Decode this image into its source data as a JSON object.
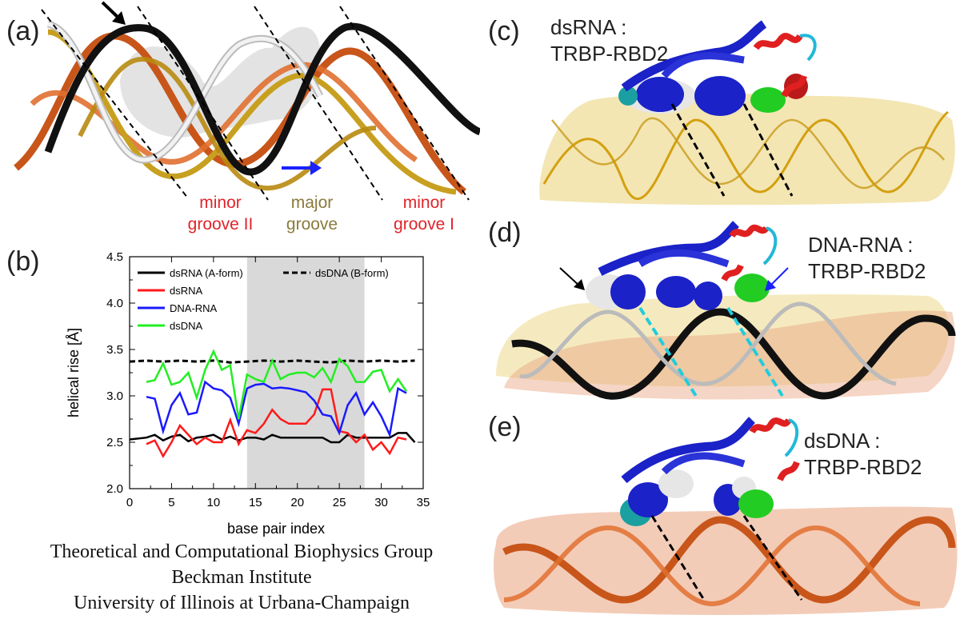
{
  "panel_a": {
    "label": "(a)",
    "groove_labels": [
      {
        "text": "minor groove II",
        "color": "#e0242a"
      },
      {
        "text": "major groove",
        "color": "#8a7a3a"
      },
      {
        "text": "minor groove I",
        "color": "#e0242a"
      }
    ]
  },
  "panel_b": {
    "label": "(b)"
  },
  "panel_c": {
    "label": "(c)",
    "complex": [
      "dsRNA :",
      "TRBP-RBD2"
    ]
  },
  "panel_d": {
    "label": "(d)",
    "complex": [
      "DNA-RNA :",
      "TRBP-RBD2"
    ]
  },
  "panel_e": {
    "label": "(e)",
    "complex": [
      "dsDNA :",
      "TRBP-RBD2"
    ]
  },
  "footer": {
    "line1": "Theoretical and Computational Biophysics Group",
    "line2": "Beckman Institute",
    "line3": "University of Illinois at Urbana-Champaign"
  },
  "colors": {
    "dsRNA_Aform": "#000000",
    "dsRNA": "#ff1a1a",
    "DNA_RNA": "#1a1aff",
    "dsDNA": "#22ee22",
    "shade": "#d9d9d9",
    "rna_surface": "#ecd98a",
    "dna_surface": "#e9a27e",
    "protein_blue": "#1a22c8",
    "helix_red": "#e02020",
    "green_residue": "#22cc22"
  },
  "chart_data": {
    "type": "line",
    "xlabel": "base pair index",
    "ylabel": "helical rise [Å]",
    "xlim": [
      0,
      35
    ],
    "ylim": [
      2.0,
      4.5
    ],
    "xticks": [
      "0",
      "5",
      "10",
      "15",
      "20",
      "25",
      "30",
      "35"
    ],
    "yticks": [
      "2.0",
      "2.5",
      "3.0",
      "3.5",
      "4.0",
      "4.5"
    ],
    "shaded_region": [
      14,
      28
    ],
    "legend_position": "top",
    "series": [
      {
        "name": "dsRNA (A-form)",
        "color": "#000000",
        "dash": "solid",
        "x": [
          0,
          2,
          3,
          4,
          5,
          6,
          7,
          8,
          9,
          10,
          11,
          12,
          13,
          14,
          15,
          16,
          17,
          18,
          19,
          20,
          21,
          22,
          23,
          24,
          25,
          26,
          27,
          28,
          29,
          30,
          31,
          32,
          33,
          34
        ],
        "y": [
          2.53,
          2.55,
          2.58,
          2.52,
          2.56,
          2.58,
          2.51,
          2.55,
          2.56,
          2.58,
          2.53,
          2.56,
          2.52,
          2.55,
          2.55,
          2.53,
          2.58,
          2.55,
          2.55,
          2.55,
          2.55,
          2.55,
          2.55,
          2.5,
          2.5,
          2.58,
          2.55,
          2.55,
          2.55,
          2.55,
          2.55,
          2.6,
          2.6,
          2.5
        ]
      },
      {
        "name": "dsDNA (B-form)",
        "color": "#000000",
        "dash": "dashed",
        "x": [
          0,
          2,
          4,
          6,
          8,
          10,
          12,
          14,
          16,
          18,
          20,
          22,
          24,
          26,
          28,
          30,
          32,
          34
        ],
        "y": [
          3.37,
          3.38,
          3.37,
          3.38,
          3.37,
          3.38,
          3.36,
          3.37,
          3.38,
          3.37,
          3.38,
          3.37,
          3.36,
          3.38,
          3.37,
          3.38,
          3.37,
          3.38
        ]
      },
      {
        "name": "dsRNA",
        "color": "#ff1a1a",
        "dash": "solid",
        "x": [
          2,
          3,
          4,
          5,
          6,
          7,
          8,
          9,
          10,
          11,
          12,
          13,
          14,
          15,
          16,
          17,
          18,
          19,
          20,
          21,
          22,
          23,
          24,
          25,
          26,
          27,
          28,
          29,
          30,
          31,
          32,
          33
        ],
        "y": [
          2.48,
          2.52,
          2.35,
          2.5,
          2.68,
          2.58,
          2.48,
          2.55,
          2.5,
          2.5,
          2.74,
          2.48,
          2.63,
          2.6,
          2.7,
          2.85,
          2.75,
          2.7,
          2.7,
          2.7,
          2.8,
          3.07,
          3.07,
          2.62,
          2.6,
          2.5,
          2.58,
          2.42,
          2.5,
          2.38,
          2.55,
          2.53
        ]
      },
      {
        "name": "DNA-RNA",
        "color": "#1a1aff",
        "dash": "solid",
        "x": [
          2,
          3,
          4,
          5,
          6,
          7,
          8,
          9,
          10,
          11,
          12,
          13,
          14,
          15,
          16,
          17,
          18,
          19,
          20,
          21,
          22,
          23,
          24,
          25,
          26,
          27,
          28,
          29,
          30,
          31,
          32,
          33
        ],
        "y": [
          2.99,
          2.97,
          2.62,
          2.9,
          3.03,
          2.8,
          2.82,
          3.15,
          3.08,
          3.06,
          2.98,
          2.7,
          3.08,
          3.12,
          3.13,
          3.08,
          3.09,
          3.08,
          3.06,
          3.04,
          2.95,
          2.8,
          2.78,
          2.6,
          2.9,
          3.03,
          2.8,
          2.93,
          2.78,
          2.58,
          3.08,
          3.03
        ]
      },
      {
        "name": "dsDNA",
        "color": "#22ee22",
        "dash": "solid",
        "x": [
          2,
          3,
          4,
          5,
          6,
          7,
          8,
          9,
          10,
          11,
          12,
          13,
          14,
          15,
          16,
          17,
          18,
          19,
          20,
          21,
          22,
          23,
          24,
          25,
          26,
          27,
          28,
          29,
          30,
          31,
          32,
          33
        ],
        "y": [
          3.15,
          3.17,
          3.35,
          3.12,
          3.15,
          3.25,
          2.98,
          3.28,
          3.48,
          3.28,
          3.33,
          2.75,
          3.23,
          3.18,
          3.15,
          3.38,
          3.18,
          3.23,
          3.25,
          3.25,
          3.2,
          3.3,
          3.15,
          3.4,
          3.32,
          3.15,
          3.15,
          3.26,
          3.28,
          3.05,
          3.18,
          3.05
        ]
      }
    ]
  }
}
